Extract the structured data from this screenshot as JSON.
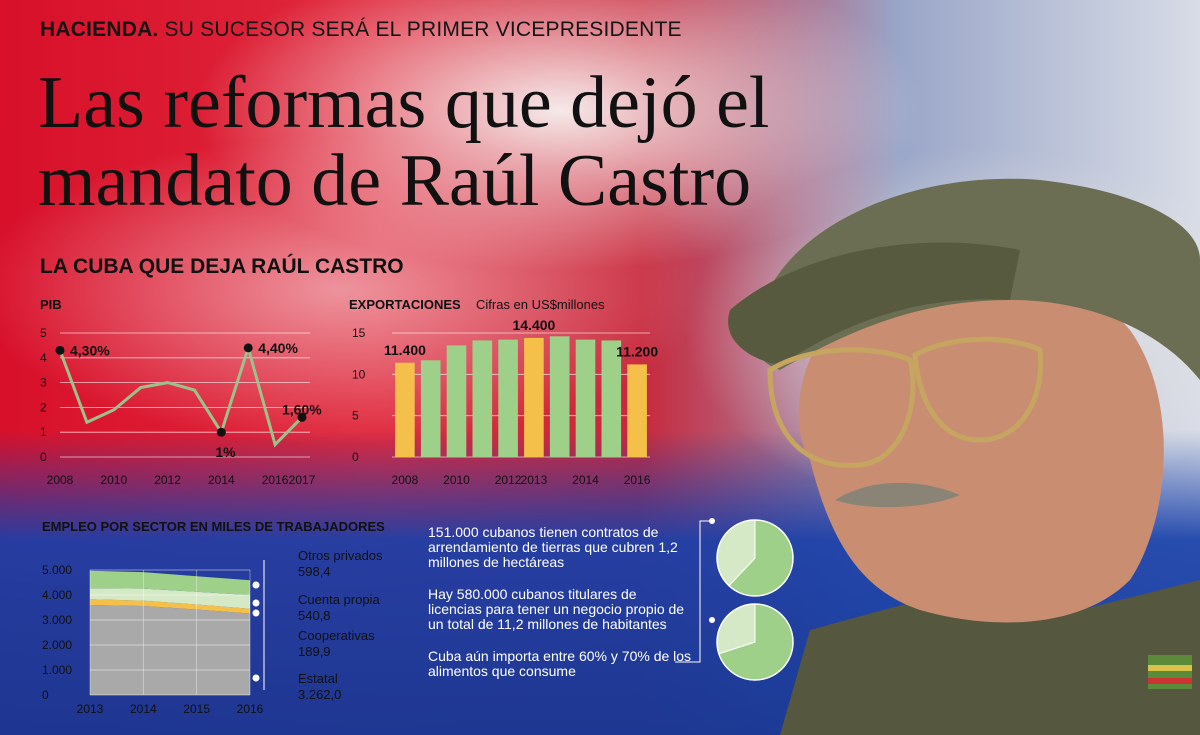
{
  "header": {
    "kicker_bold": "HACIENDA.",
    "kicker_rest": "SU SUCESOR SERÁ EL PRIMER VICEPRESIDENTE",
    "headline": "Las reformas que dejó el mandato de Raúl Castro",
    "section_title": "LA CUBA QUE DEJA RAÚL CASTRO"
  },
  "colors": {
    "line": "#9ac28a",
    "bar_highlight": "#f5c04a",
    "bar_normal": "#9ed08a",
    "area_estatal": "#a9a9a9",
    "area_cooperativas": "#f5c04a",
    "area_cuenta_propia": "#d6e9c6",
    "area_otros": "#9ed08a"
  },
  "chart_data": [
    {
      "type": "line",
      "title": "PIB",
      "x": [
        2008,
        2009,
        2010,
        2011,
        2012,
        2013,
        2014,
        2015,
        2016,
        2017
      ],
      "x_tick_labels": [
        "2008",
        "2010",
        "2012",
        "2014",
        "2016",
        "2017"
      ],
      "y_tick_labels": [
        "0",
        "1",
        "2",
        "3",
        "4",
        "5"
      ],
      "ylim": [
        0,
        5
      ],
      "series": [
        {
          "values": [
            4.3,
            1.4,
            1.9,
            2.8,
            3.0,
            2.7,
            1.0,
            4.4,
            0.5,
            1.6
          ]
        }
      ],
      "annotations": [
        {
          "x": 2008,
          "y": 4.3,
          "label": "4,30%"
        },
        {
          "x": 2014,
          "y": 1.0,
          "label": "1%"
        },
        {
          "x": 2015,
          "y": 4.4,
          "label": "4,40%"
        },
        {
          "x": 2017,
          "y": 1.6,
          "label": "1,60%"
        }
      ]
    },
    {
      "type": "bar",
      "title": "EXPORTACIONES",
      "subtitle": "Cifras en US$millones",
      "categories": [
        2008,
        2009,
        2010,
        2011,
        2012,
        2013,
        2014,
        2015,
        2016,
        2017
      ],
      "x_tick_labels": [
        "2008",
        "2010",
        "2012",
        "2013",
        "2014",
        "2016"
      ],
      "values": [
        11.4,
        11.7,
        13.5,
        14.1,
        14.2,
        14.4,
        14.6,
        14.2,
        14.1,
        11.2
      ],
      "highlight": [
        true,
        false,
        false,
        false,
        false,
        true,
        false,
        false,
        false,
        true
      ],
      "y_tick_labels": [
        "0",
        "5",
        "10",
        "15"
      ],
      "ylim": [
        0,
        15
      ],
      "data_labels": [
        {
          "index": 0,
          "label": "11.400"
        },
        {
          "index": 5,
          "label": "14.400"
        },
        {
          "index": 9,
          "label": "11.200"
        }
      ]
    },
    {
      "type": "area",
      "title": "EMPLEO POR SECTOR EN MILES DE TRABAJADORES",
      "x": [
        2013,
        2014,
        2015,
        2016
      ],
      "x_tick_labels": [
        "2013",
        "2014",
        "2015",
        "2016"
      ],
      "y_tick_labels": [
        "0",
        "1.000",
        "2.000",
        "3.000",
        "4.000",
        "5.000"
      ],
      "ylim": [
        0,
        5000
      ],
      "series": [
        {
          "name": "Estatal",
          "value_label": "3.262,0",
          "values": [
            3600,
            3560,
            3420,
            3262
          ]
        },
        {
          "name": "Cooperativas",
          "value_label": "189,9",
          "values": [
            230,
            215,
            200,
            190
          ]
        },
        {
          "name": "Cuenta propia",
          "value_label": "540,8",
          "values": [
            440,
            480,
            510,
            541
          ]
        },
        {
          "name": "Otros privados",
          "value_label": "598,4",
          "values": [
            700,
            660,
            620,
            598
          ]
        }
      ]
    },
    {
      "type": "pie",
      "values": [
        62,
        38
      ]
    },
    {
      "type": "pie",
      "values": [
        70,
        30
      ]
    }
  ],
  "facts": [
    "151.000 cubanos tienen contratos de arrendamiento de tierras que cubren 1,2 millones de hectáreas",
    "Hay 580.000 cubanos titulares de licencias para tener un negocio propio de un total de 11,2 millones de habitantes",
    "Cuba aún importa entre 60% y 70% de los alimentos que consume"
  ]
}
